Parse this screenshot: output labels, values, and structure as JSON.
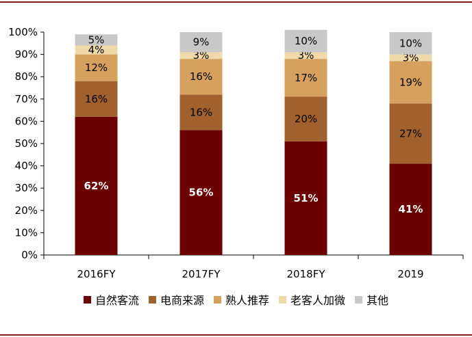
{
  "chart_data": {
    "type": "bar",
    "stacked": true,
    "categories": [
      "2016FY",
      "2017FY",
      "2018FY",
      "2019"
    ],
    "series": [
      {
        "name": "自然客流",
        "color": "#6b0000",
        "values": [
          62,
          56,
          51,
          41
        ],
        "labels": [
          "62%",
          "56%",
          "51%",
          "41%"
        ],
        "label_color": "#ffffff"
      },
      {
        "name": "电商来源",
        "color": "#a0612e",
        "values": [
          16,
          16,
          20,
          27
        ],
        "labels": [
          "16%",
          "16%",
          "20%",
          "27%"
        ],
        "label_color": "#000000"
      },
      {
        "name": "熟人推荐",
        "color": "#d6a15e",
        "values": [
          12,
          16,
          17,
          19
        ],
        "labels": [
          "12%",
          "16%",
          "17%",
          "19%"
        ],
        "label_color": "#000000"
      },
      {
        "name": "老客人加微",
        "color": "#f0d9a8",
        "values": [
          4,
          3,
          3,
          3
        ],
        "labels": [
          "4%",
          "3%",
          "3%",
          "3%"
        ],
        "label_color": "#000000"
      },
      {
        "name": "其他",
        "color": "#c8c8c8",
        "values": [
          5,
          9,
          10,
          10
        ],
        "labels": [
          "5%",
          "9%",
          "10%",
          "10%"
        ],
        "label_color": "#000000"
      }
    ],
    "yticks": [
      "0%",
      "10%",
      "20%",
      "30%",
      "40%",
      "50%",
      "60%",
      "70%",
      "80%",
      "90%",
      "100%"
    ],
    "ylim": [
      0,
      100
    ],
    "grid": false,
    "legend_position": "bottom"
  }
}
